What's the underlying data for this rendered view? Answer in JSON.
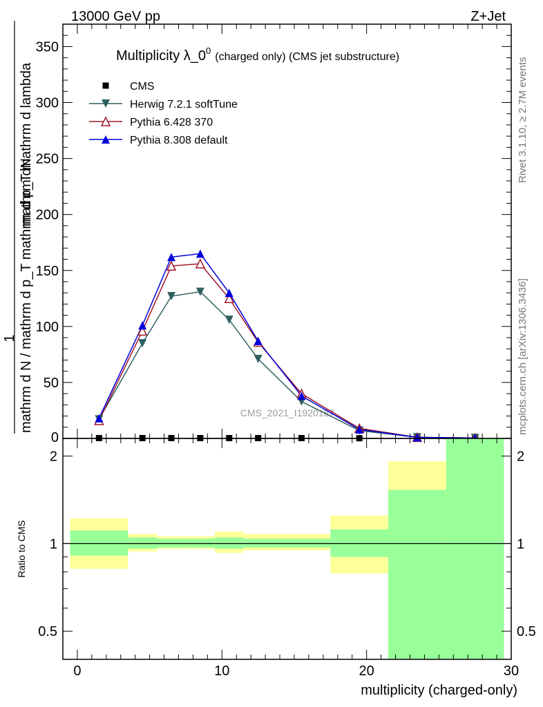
{
  "header": {
    "energy": "13000 GeV pp",
    "process": "Z+Jet"
  },
  "side_labels": {
    "rivet": "Rivet 3.1.10, ≥ 2.7M events",
    "mcplots": "mcplots.cern.ch [arXiv:1306.3436]"
  },
  "watermark": "CMS_2021_I1920187",
  "chart_data": [
    {
      "type": "line",
      "title_main": "Multiplicity λ_0",
      "title_sup": "0",
      "title_sub": "(charged only) (CMS jet substructure)",
      "ylabel_num": "1",
      "ylabel_den": "mathrm d N / mathrm d p_T mathrm d p_T mathrm d lambda",
      "ylabel_top": "mathrm dN",
      "xlim": [
        -1,
        30
      ],
      "ylim": [
        0,
        370
      ],
      "xticks": [
        0,
        10,
        20,
        30
      ],
      "yticks": [
        50,
        100,
        150,
        200,
        250,
        300,
        350
      ],
      "ytick_labels": [
        "50",
        "100",
        "150",
        "200",
        "250",
        "300",
        "350"
      ],
      "y0_label": "0",
      "x": [
        1.5,
        4.5,
        6.5,
        8.5,
        10.5,
        12.5,
        15.5,
        19.5,
        23.5,
        27.5
      ],
      "series": [
        {
          "name": "CMS",
          "color": "#000000",
          "marker": "square",
          "values": [
            0.3,
            0.3,
            0.3,
            0.3,
            0.3,
            0.3,
            0.3,
            0.2,
            0.1,
            0.1
          ]
        },
        {
          "name": "Herwig 7.2.1 softTune",
          "color": "#2f5f60",
          "marker": "triangle-down",
          "values": [
            17,
            85,
            127,
            131,
            106,
            71,
            33,
            7,
            1,
            0.5
          ]
        },
        {
          "name": "Pythia 6.428 370",
          "color": "#a0162a",
          "marker": "triangle-up-open",
          "values": [
            16,
            96,
            154,
            156,
            125,
            86,
            40,
            9,
            1,
            0.3
          ]
        },
        {
          "name": "Pythia 8.308 default",
          "color": "#0000dd",
          "marker": "triangle-up",
          "values": [
            18,
            101,
            162,
            165,
            130,
            87,
            38,
            8,
            1,
            0.3
          ]
        }
      ]
    },
    {
      "type": "area",
      "ylabel": "Ratio to CMS",
      "xlabel": "multiplicity (charged-only)",
      "scale": "log",
      "ylim": [
        0.4,
        2.3
      ],
      "yticks": [
        0.5,
        1,
        2
      ],
      "ytick_labels": [
        "0.5",
        "1",
        "2"
      ],
      "xticks": [
        0,
        10,
        20,
        30
      ],
      "xtick_labels": [
        "0",
        "10",
        "20",
        "30"
      ],
      "reference": 1,
      "bins": [
        {
          "x0": -0.5,
          "x1": 3.5,
          "stat": [
            0.91,
            1.11
          ],
          "total": [
            0.82,
            1.22
          ]
        },
        {
          "x0": 3.5,
          "x1": 5.5,
          "stat": [
            0.96,
            1.05
          ],
          "total": [
            0.94,
            1.08
          ]
        },
        {
          "x0": 5.5,
          "x1": 7.5,
          "stat": [
            0.97,
            1.04
          ],
          "total": [
            0.96,
            1.06
          ]
        },
        {
          "x0": 7.5,
          "x1": 9.5,
          "stat": [
            0.97,
            1.04
          ],
          "total": [
            0.96,
            1.06
          ]
        },
        {
          "x0": 9.5,
          "x1": 11.5,
          "stat": [
            0.96,
            1.05
          ],
          "total": [
            0.93,
            1.1
          ]
        },
        {
          "x0": 11.5,
          "x1": 17.5,
          "stat": [
            0.97,
            1.04
          ],
          "total": [
            0.95,
            1.08
          ]
        },
        {
          "x0": 17.5,
          "x1": 21.5,
          "stat": [
            0.9,
            1.12
          ],
          "total": [
            0.79,
            1.25
          ]
        },
        {
          "x0": 21.5,
          "x1": 25.5,
          "stat": [
            0.37,
            1.53
          ],
          "total": [
            0.55,
            1.92
          ]
        },
        {
          "x0": 25.5,
          "x1": 29.5,
          "stat": [
            0.3,
            2.6
          ],
          "total": [
            0.3,
            2.6
          ]
        }
      ],
      "band_colors": {
        "stat": "#99ff99",
        "total": "#ffff99"
      }
    }
  ]
}
